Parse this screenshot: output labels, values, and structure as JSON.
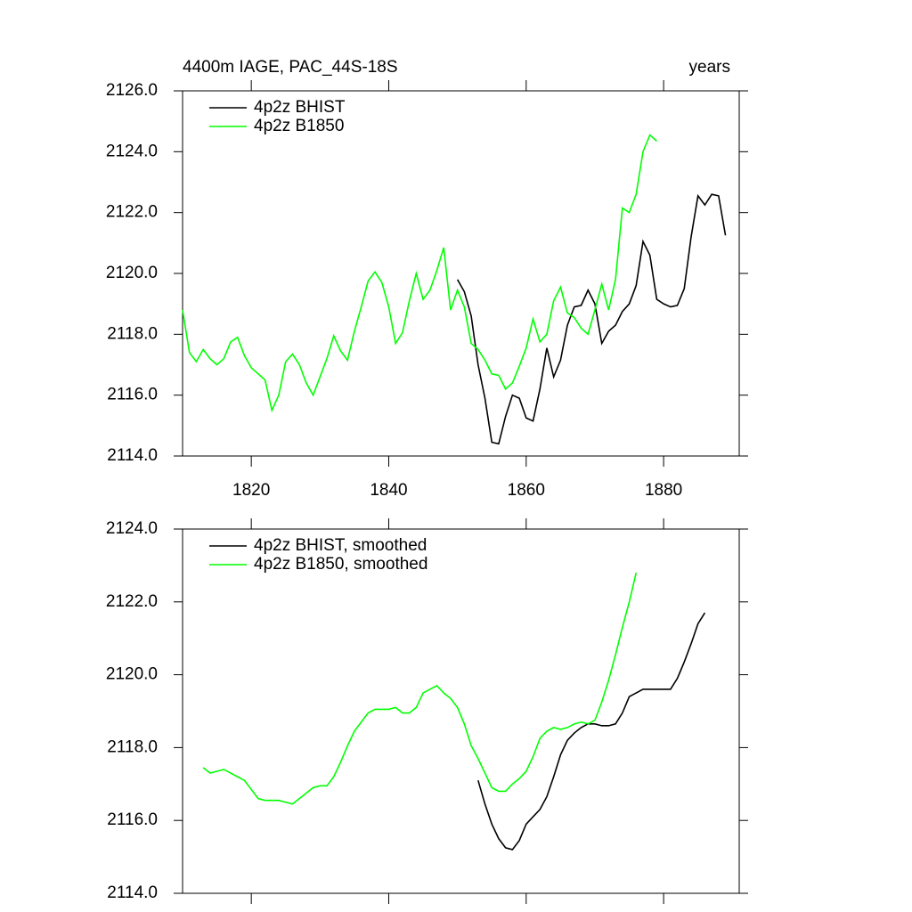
{
  "chart_data": [
    {
      "type": "line",
      "title": "4400m IAGE, PAC_44S-18S",
      "right_title": "years",
      "xlim": [
        1810,
        1891
      ],
      "xticks": [
        1820,
        1840,
        1860,
        1880
      ],
      "show_xtick_labels": true,
      "ylim": [
        2114,
        2126
      ],
      "yticks": [
        {
          "value": 2114,
          "label": "2114.0"
        },
        {
          "value": 2116,
          "label": "2116.0"
        },
        {
          "value": 2118,
          "label": "2118.0"
        },
        {
          "value": 2120,
          "label": "2120.0"
        },
        {
          "value": 2122,
          "label": "2122.0"
        },
        {
          "value": 2124,
          "label": "2124.0"
        },
        {
          "value": 2126,
          "label": "2126.0"
        }
      ],
      "legend": "top-left",
      "series": [
        {
          "name": "4p2z BHIST",
          "color": "#000000",
          "x": [
            1850,
            1851,
            1852,
            1853,
            1854,
            1855,
            1856,
            1857,
            1858,
            1859,
            1860,
            1861,
            1862,
            1863,
            1864,
            1865,
            1866,
            1867,
            1868,
            1869,
            1870,
            1871,
            1872,
            1873,
            1874,
            1875,
            1876,
            1877,
            1878,
            1879,
            1880,
            1881,
            1882,
            1883,
            1884,
            1885,
            1886,
            1887,
            1888,
            1889
          ],
          "values": [
            2119.8,
            2119.4,
            2118.6,
            2117.0,
            2115.9,
            2114.45,
            2114.4,
            2115.3,
            2116.0,
            2115.9,
            2115.25,
            2115.15,
            2116.2,
            2117.55,
            2116.6,
            2117.15,
            2118.3,
            2118.9,
            2118.95,
            2119.45,
            2119.0,
            2117.7,
            2118.1,
            2118.3,
            2118.75,
            2119.0,
            2119.6,
            2121.05,
            2120.6,
            2119.15,
            2119.0,
            2118.9,
            2118.95,
            2119.5,
            2121.2,
            2122.55,
            2122.25,
            2122.6,
            2122.55,
            2121.25
          ]
        },
        {
          "name": "4p2z B1850",
          "color": "#00ff00",
          "x": [
            1810,
            1811,
            1812,
            1813,
            1814,
            1815,
            1816,
            1817,
            1818,
            1819,
            1820,
            1821,
            1822,
            1823,
            1824,
            1825,
            1826,
            1827,
            1828,
            1829,
            1830,
            1831,
            1832,
            1833,
            1834,
            1835,
            1836,
            1837,
            1838,
            1839,
            1840,
            1841,
            1842,
            1843,
            1844,
            1845,
            1846,
            1847,
            1848,
            1849,
            1850,
            1851,
            1852,
            1853,
            1854,
            1855,
            1856,
            1857,
            1858,
            1859,
            1860,
            1861,
            1862,
            1863,
            1864,
            1865,
            1866,
            1867,
            1868,
            1869,
            1870,
            1871,
            1872,
            1873,
            1874,
            1875,
            1876,
            1877,
            1878,
            1879
          ],
          "values": [
            2118.8,
            2117.4,
            2117.1,
            2117.5,
            2117.2,
            2117.0,
            2117.2,
            2117.75,
            2117.9,
            2117.3,
            2116.9,
            2116.7,
            2116.5,
            2115.5,
            2116.0,
            2117.1,
            2117.35,
            2117.0,
            2116.4,
            2116.0,
            2116.6,
            2117.2,
            2117.95,
            2117.45,
            2117.15,
            2118.1,
            2118.9,
            2119.75,
            2120.05,
            2119.7,
            2118.9,
            2117.7,
            2118.05,
            2119.1,
            2120.0,
            2119.15,
            2119.45,
            2120.1,
            2120.85,
            2118.8,
            2119.45,
            2118.9,
            2117.7,
            2117.5,
            2117.15,
            2116.7,
            2116.65,
            2116.2,
            2116.4,
            2116.95,
            2117.55,
            2118.5,
            2117.75,
            2118.0,
            2119.1,
            2119.55,
            2118.7,
            2118.55,
            2118.2,
            2118.0,
            2118.8,
            2119.65,
            2118.8,
            2119.8,
            2122.15,
            2122.0,
            2122.6,
            2124.0,
            2124.55,
            2124.35
          ]
        }
      ]
    },
    {
      "type": "line",
      "xlim": [
        1810,
        1891
      ],
      "xticks": [
        1820,
        1840,
        1860,
        1880
      ],
      "show_xtick_labels": false,
      "ylim": [
        2114,
        2124
      ],
      "yticks": [
        {
          "value": 2114,
          "label": "2114.0"
        },
        {
          "value": 2116,
          "label": "2116.0"
        },
        {
          "value": 2118,
          "label": "2118.0"
        },
        {
          "value": 2120,
          "label": "2120.0"
        },
        {
          "value": 2122,
          "label": "2122.0"
        },
        {
          "value": 2124,
          "label": "2124.0"
        }
      ],
      "legend": "top-left",
      "series": [
        {
          "name": "4p2z BHIST, smoothed",
          "color": "#000000",
          "x": [
            1853,
            1854,
            1855,
            1856,
            1857,
            1858,
            1859,
            1860,
            1861,
            1862,
            1863,
            1864,
            1865,
            1866,
            1867,
            1868,
            1869,
            1870,
            1871,
            1872,
            1873,
            1874,
            1875,
            1876,
            1877,
            1878,
            1879,
            1880,
            1881,
            1882,
            1883,
            1884,
            1885,
            1886
          ],
          "values": [
            2117.1,
            2116.45,
            2115.9,
            2115.5,
            2115.25,
            2115.2,
            2115.45,
            2115.9,
            2116.1,
            2116.3,
            2116.65,
            2117.2,
            2117.8,
            2118.2,
            2118.4,
            2118.55,
            2118.65,
            2118.65,
            2118.6,
            2118.6,
            2118.65,
            2118.95,
            2119.4,
            2119.5,
            2119.6,
            2119.6,
            2119.6,
            2119.6,
            2119.6,
            2119.9,
            2120.35,
            2120.85,
            2121.4,
            2121.7
          ]
        },
        {
          "name": "4p2z B1850, smoothed",
          "color": "#00ff00",
          "x": [
            1813,
            1814,
            1815,
            1816,
            1817,
            1818,
            1819,
            1820,
            1821,
            1822,
            1823,
            1824,
            1825,
            1826,
            1827,
            1828,
            1829,
            1830,
            1831,
            1832,
            1833,
            1834,
            1835,
            1836,
            1837,
            1838,
            1839,
            1840,
            1841,
            1842,
            1843,
            1844,
            1845,
            1846,
            1847,
            1848,
            1849,
            1850,
            1851,
            1852,
            1853,
            1854,
            1855,
            1856,
            1857,
            1858,
            1859,
            1860,
            1861,
            1862,
            1863,
            1864,
            1865,
            1866,
            1867,
            1868,
            1869,
            1870,
            1871,
            1872,
            1873,
            1874,
            1875,
            1876
          ],
          "values": [
            2117.45,
            2117.3,
            2117.35,
            2117.4,
            2117.3,
            2117.2,
            2117.1,
            2116.85,
            2116.6,
            2116.55,
            2116.55,
            2116.55,
            2116.5,
            2116.45,
            2116.6,
            2116.75,
            2116.9,
            2116.95,
            2116.95,
            2117.2,
            2117.6,
            2118.05,
            2118.45,
            2118.7,
            2118.95,
            2119.05,
            2119.05,
            2119.05,
            2119.1,
            2118.95,
            2118.95,
            2119.1,
            2119.5,
            2119.6,
            2119.7,
            2119.5,
            2119.35,
            2119.1,
            2118.65,
            2118.05,
            2117.7,
            2117.3,
            2116.9,
            2116.8,
            2116.8,
            2117.0,
            2117.15,
            2117.35,
            2117.75,
            2118.25,
            2118.45,
            2118.55,
            2118.5,
            2118.55,
            2118.65,
            2118.7,
            2118.65,
            2118.75,
            2119.25,
            2119.85,
            2120.55,
            2121.3,
            2122.0,
            2122.8
          ]
        }
      ]
    }
  ]
}
